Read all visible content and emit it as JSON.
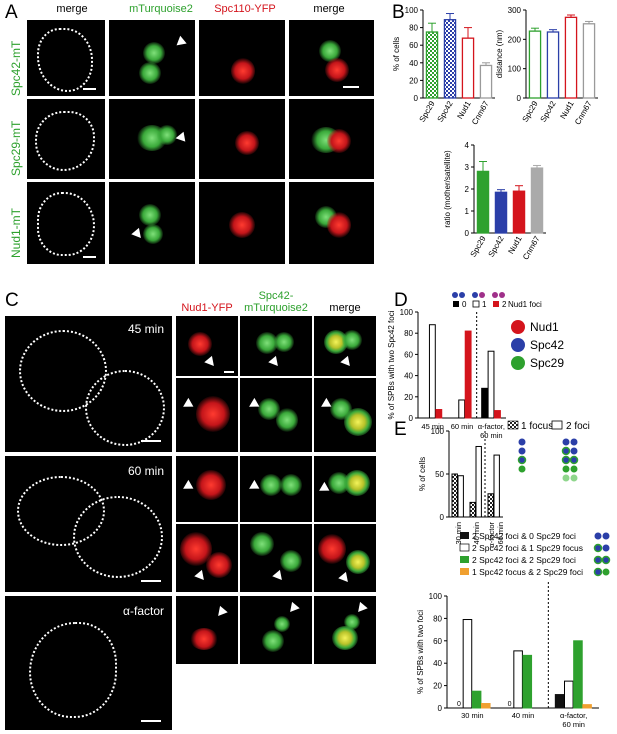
{
  "panels": {
    "A": "A",
    "B": "B",
    "C": "C",
    "D": "D",
    "E": "E"
  },
  "A": {
    "col_headers": [
      "merge",
      "mTurquoise2",
      "Spc110-YFP",
      "merge"
    ],
    "row_labels": [
      "Spc42-mT",
      "Spc29-mT",
      "Nud1-mT"
    ]
  },
  "C": {
    "col_headers": [
      "Nud1-YFP",
      "Spc42-\nmTurquoise2",
      "merge"
    ],
    "col_header_spc42_line1": "Spc42-",
    "col_header_spc42_line2": "mTurquoise2",
    "times": [
      "45 min",
      "60 min",
      "α-factor"
    ]
  },
  "D": {
    "legend": [
      "Nud1",
      "Spc42",
      "Spc29"
    ],
    "key_labels": [
      "0",
      "1",
      "2",
      "Nud1 foci"
    ]
  },
  "E": {
    "legend_top": [
      "1 focus",
      "2 foci"
    ],
    "legend_bottom": [
      "2 Spc42 foci & 0 Spc29 foci",
      "2 Spc42 foci & 1 Spc29 focus",
      "2 Spc42 foci & 2 Spc29 foci",
      "1 Spc42 focus & 2 Spc29 foci"
    ]
  },
  "colors": {
    "green": "#2ea12e",
    "red": "#d4141c",
    "blue": "#2b3fa8",
    "gray": "#9a9a9a",
    "dark": "#000000",
    "orange": "#f0a030"
  },
  "chart_data": [
    {
      "id": "B1",
      "type": "bar",
      "categories": [
        "Spc29",
        "Spc42",
        "Nud1",
        "Cnm67"
      ],
      "values": [
        75,
        89,
        68,
        37
      ],
      "errors": [
        10,
        7,
        12,
        3
      ],
      "ylabel": "% of cells",
      "ylim": [
        0,
        100
      ],
      "yticks": [
        "0",
        "20",
        "40",
        "60",
        "80",
        "100"
      ]
    },
    {
      "id": "B2",
      "type": "bar",
      "categories": [
        "Spc29",
        "Spc42",
        "Nud1",
        "Cnm67"
      ],
      "values": [
        228,
        225,
        275,
        253
      ],
      "errors": [
        10,
        8,
        8,
        8
      ],
      "ylabel": "distance (nm)",
      "ylim": [
        0,
        300
      ],
      "yticks": [
        "0",
        "100",
        "200",
        "300"
      ]
    },
    {
      "id": "B3",
      "type": "bar",
      "categories": [
        "Spc29",
        "Spc42",
        "Nud1",
        "Cnm67"
      ],
      "values": [
        2.8,
        1.85,
        1.9,
        2.95
      ],
      "errors": [
        0.45,
        0.12,
        0.25,
        0.12
      ],
      "ylabel": "ratio (mother/satellite)",
      "ylim": [
        0,
        4
      ],
      "yticks": [
        "0",
        "1",
        "2",
        "3",
        "4"
      ]
    },
    {
      "id": "D",
      "type": "bar",
      "groups": [
        "45 min",
        "60 min",
        "α-factor,\n60 min"
      ],
      "group_labels": [
        "45 min",
        "60 min",
        "α-factor,",
        "60 min"
      ],
      "series": [
        {
          "name": "0",
          "values": [
            0,
            0,
            28
          ]
        },
        {
          "name": "1",
          "values": [
            88,
            17,
            63
          ]
        },
        {
          "name": "2",
          "values": [
            8,
            82,
            7
          ]
        }
      ],
      "ylabel": "% of SPBs with two Spc42 foci",
      "ylim": [
        0,
        100
      ],
      "yticks": [
        "0",
        "20",
        "40",
        "60",
        "80",
        "100"
      ]
    },
    {
      "id": "E1",
      "type": "bar",
      "groups": [
        "30 min",
        "40 min",
        "α-factor\n60 min"
      ],
      "group_labels": [
        "30 min",
        "40 min",
        "α-factor",
        "60 min"
      ],
      "series": [
        {
          "name": "1 focus",
          "values": [
            50,
            17,
            27
          ]
        },
        {
          "name": "2 foci",
          "values": [
            48,
            82,
            72
          ]
        }
      ],
      "ylabel": "% of cells",
      "ylim": [
        0,
        100
      ],
      "yticks": [
        "0",
        "50",
        "100"
      ]
    },
    {
      "id": "E2",
      "type": "bar",
      "groups": [
        "30 min",
        "40 min",
        "α-factor,\n60 min"
      ],
      "group_labels": [
        "30 min",
        "40 min",
        "α-factor,",
        "60 min"
      ],
      "series": [
        {
          "name": "2 Spc42 foci & 0 Spc29 foci",
          "values": [
            0,
            0,
            12
          ]
        },
        {
          "name": "2 Spc42 foci & 1 Spc29 focus",
          "values": [
            79,
            51,
            24
          ]
        },
        {
          "name": "2 Spc42 foci & 2 Spc29 foci",
          "values": [
            15,
            47,
            60
          ]
        },
        {
          "name": "1 Spc42 focus & 2 Spc29 foci",
          "values": [
            4,
            0,
            3
          ]
        }
      ],
      "zero_labels": [
        "0",
        "0"
      ],
      "ylabel": "% of SPBs with two foci",
      "ylim": [
        0,
        100
      ],
      "yticks": [
        "0",
        "20",
        "40",
        "60",
        "80",
        "100"
      ]
    }
  ]
}
